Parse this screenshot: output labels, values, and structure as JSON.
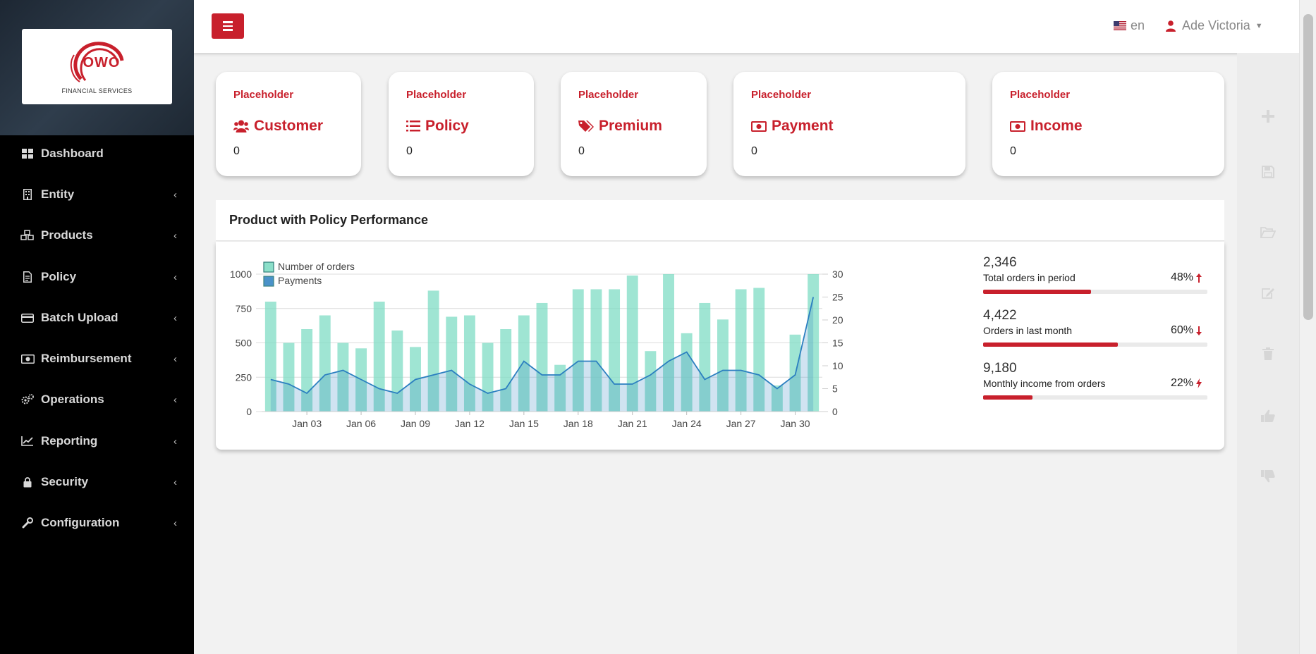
{
  "brand": {
    "logo_text": "OWO",
    "logo_subtitle": "FINANCIAL SERVICES",
    "accent": "#c8202c"
  },
  "header": {
    "language": "en",
    "user_name": "Ade Victoria"
  },
  "sidebar": {
    "items": [
      {
        "label": "Dashboard",
        "icon": "dashboard-icon",
        "has_children": false
      },
      {
        "label": "Entity",
        "icon": "building-icon",
        "has_children": true
      },
      {
        "label": "Products",
        "icon": "cubes-icon",
        "has_children": true
      },
      {
        "label": "Policy",
        "icon": "document-icon",
        "has_children": true
      },
      {
        "label": "Batch Upload",
        "icon": "credit-card-icon",
        "has_children": true
      },
      {
        "label": "Reimbursement",
        "icon": "money-icon",
        "has_children": true
      },
      {
        "label": "Operations",
        "icon": "cogs-icon",
        "has_children": true
      },
      {
        "label": "Reporting",
        "icon": "line-chart-icon",
        "has_children": true
      },
      {
        "label": "Security",
        "icon": "lock-icon",
        "has_children": true
      },
      {
        "label": "Configuration",
        "icon": "wrench-icon",
        "has_children": true
      }
    ]
  },
  "stats": [
    {
      "small": "Placeholder",
      "title": "Customer",
      "icon": "users-icon",
      "value": "0"
    },
    {
      "small": "Placeholder",
      "title": "Policy",
      "icon": "list-icon",
      "value": "0"
    },
    {
      "small": "Placeholder",
      "title": "Premium",
      "icon": "tags-icon",
      "value": "0"
    },
    {
      "small": "Placeholder",
      "title": "Payment",
      "icon": "money-icon",
      "value": "0"
    },
    {
      "small": "Placeholder",
      "title": "Income",
      "icon": "money-icon",
      "value": "0"
    }
  ],
  "panel": {
    "title": "Product with Policy Performance"
  },
  "progress_stats": [
    {
      "value": "2,346",
      "label": "Total orders in period",
      "percent": "48%",
      "fraction": 0.48,
      "trend_icon": "arrow-up-icon"
    },
    {
      "value": "4,422",
      "label": "Orders in last month",
      "percent": "60%",
      "fraction": 0.6,
      "trend_icon": "arrow-down-icon"
    },
    {
      "value": "9,180",
      "label": "Monthly income from orders",
      "percent": "22%",
      "fraction": 0.22,
      "trend_icon": "bolt-icon"
    }
  ],
  "right_rail_icons": [
    "plus-icon",
    "save-icon",
    "folder-open-icon",
    "edit-icon",
    "trash-icon",
    "thumbs-up-icon",
    "thumbs-down-icon"
  ],
  "chart_data": {
    "type": "bar",
    "x_tick_labels": [
      "Jan 03",
      "Jan 06",
      "Jan 09",
      "Jan 12",
      "Jan 15",
      "Jan 18",
      "Jan 21",
      "Jan 24",
      "Jan 27",
      "Jan 30"
    ],
    "x": [
      1,
      2,
      3,
      4,
      5,
      6,
      7,
      8,
      9,
      10,
      11,
      12,
      13,
      14,
      15,
      16,
      17,
      18,
      19,
      20,
      21,
      22,
      23,
      24,
      25,
      26,
      27,
      28,
      29,
      30,
      31
    ],
    "y_left_ticks": [
      0,
      250,
      500,
      750,
      1000
    ],
    "y_right_ticks": [
      0,
      5,
      10,
      15,
      20,
      25,
      30
    ],
    "ylim_left": [
      0,
      1000
    ],
    "ylim_right": [
      0,
      30
    ],
    "legend": "top-left",
    "grid": true,
    "series": [
      {
        "name": "Number of orders",
        "type": "bar",
        "axis": "left",
        "color": "#7fdcc4",
        "values": [
          800,
          500,
          600,
          700,
          500,
          460,
          800,
          590,
          470,
          880,
          690,
          700,
          500,
          600,
          700,
          790,
          340,
          890,
          890,
          890,
          990,
          440,
          1000,
          570,
          790,
          670,
          890,
          900,
          190,
          560,
          1000
        ]
      },
      {
        "name": "Payments",
        "type": "area",
        "axis": "right",
        "color": "#2b7fc0",
        "values": [
          7,
          6,
          4,
          8,
          9,
          7,
          5,
          4,
          7,
          8,
          9,
          6,
          4,
          5,
          11,
          8,
          8,
          11,
          11,
          6,
          6,
          8,
          11,
          13,
          7,
          9,
          9,
          8,
          5,
          8,
          25
        ]
      }
    ]
  }
}
